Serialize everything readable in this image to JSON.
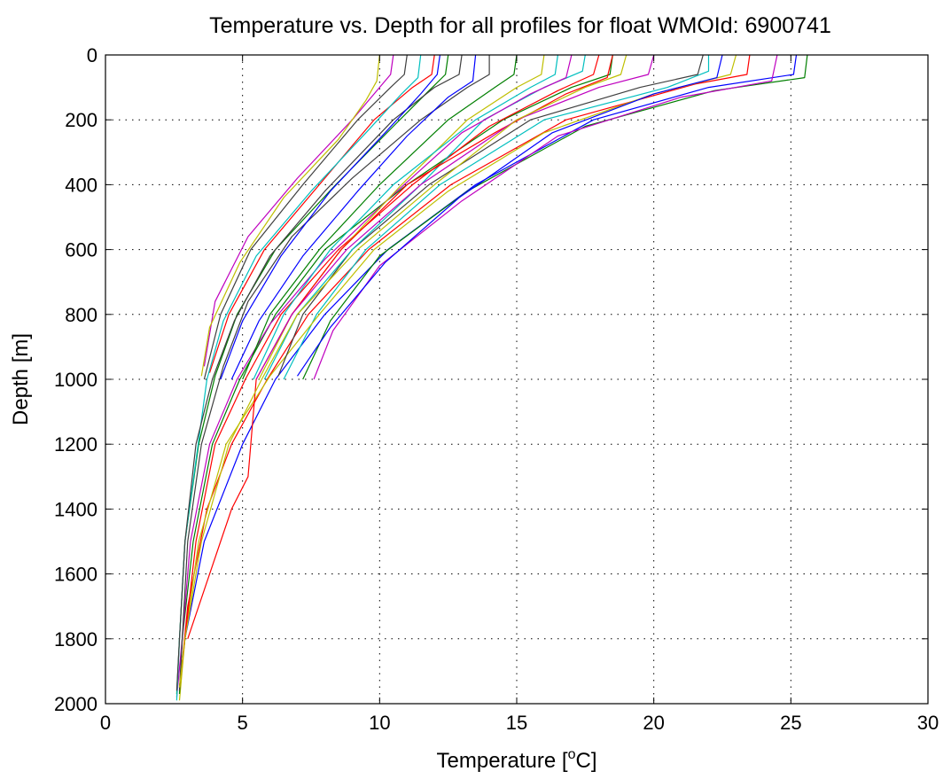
{
  "chart_data": {
    "type": "line",
    "title": "Temperature vs. Depth for all profiles for float WMOId: 6900741",
    "xlabel": "Temperature [",
    "xlabel_super": "o",
    "xlabel_end": "C]",
    "ylabel": "Depth [m]",
    "xlim": [
      0,
      30
    ],
    "ylim": [
      0,
      2000
    ],
    "y_reversed": true,
    "grid": true,
    "legend": false,
    "xticks": [
      0,
      5,
      10,
      15,
      20,
      25,
      30
    ],
    "yticks": [
      0,
      200,
      400,
      600,
      800,
      1000,
      1200,
      1400,
      1600,
      1800,
      2000
    ],
    "colors": [
      "#0000ff",
      "#007f00",
      "#ff0000",
      "#00bfbf",
      "#bf00bf",
      "#bfbf00",
      "#3f3f3f"
    ],
    "series": [
      {
        "depth": [
          0,
          60,
          100,
          200,
          400,
          600,
          800,
          1000,
          1200,
          1500,
          1800,
          1950
        ],
        "temperature": [
          25.2,
          25.1,
          22.0,
          17.8,
          13.5,
          10.3,
          8.0,
          6.2,
          5.0,
          3.6,
          2.9,
          2.7
        ]
      },
      {
        "depth": [
          0,
          70,
          110,
          220,
          420,
          620,
          820,
          1000
        ],
        "temperature": [
          25.6,
          25.5,
          22.2,
          17.5,
          13.2,
          10.0,
          8.2,
          7.2
        ]
      },
      {
        "depth": [
          0,
          60,
          90,
          200,
          400,
          600,
          800,
          1000,
          1200,
          1400,
          1700,
          1960
        ],
        "temperature": [
          23.5,
          23.4,
          21.5,
          16.8,
          12.6,
          9.6,
          7.4,
          5.9,
          4.6,
          3.7,
          3.0,
          2.7
        ]
      },
      {
        "depth": [
          0,
          50,
          100,
          200,
          400,
          600,
          800,
          1000
        ],
        "temperature": [
          22.0,
          22.0,
          20.5,
          16.0,
          12.2,
          9.5,
          7.7,
          6.5
        ]
      },
      {
        "depth": [
          0,
          80,
          130,
          250,
          450,
          650,
          850,
          1000
        ],
        "temperature": [
          24.5,
          24.3,
          21.0,
          16.5,
          13.0,
          10.0,
          8.3,
          7.6
        ]
      },
      {
        "depth": [
          0,
          60,
          120,
          240,
          420,
          600,
          800,
          990,
          1200,
          1500,
          1800,
          1990
        ],
        "temperature": [
          23.0,
          22.8,
          20.0,
          16.0,
          12.5,
          9.8,
          7.8,
          6.0,
          4.4,
          3.4,
          2.9,
          2.7
        ]
      },
      {
        "depth": [
          0,
          60,
          100,
          200,
          400,
          600,
          800,
          990
        ],
        "temperature": [
          21.8,
          21.6,
          19.5,
          15.5,
          11.8,
          9.0,
          7.2,
          6.3
        ]
      },
      {
        "depth": [
          0,
          70,
          120,
          240,
          440,
          640,
          840,
          990
        ],
        "temperature": [
          22.5,
          22.3,
          20.0,
          16.3,
          12.9,
          10.2,
          8.2,
          7.0
        ]
      },
      {
        "depth": [
          0,
          60,
          100,
          200,
          400,
          600,
          800,
          1000,
          1200,
          1500,
          1800,
          1970
        ],
        "temperature": [
          18.5,
          18.4,
          17.0,
          14.5,
          11.0,
          8.0,
          6.2,
          4.9,
          3.9,
          3.2,
          2.8,
          2.7
        ]
      },
      {
        "depth": [
          0,
          60,
          110,
          220,
          400,
          600,
          800,
          1000,
          1200,
          1500,
          1800,
          1950
        ],
        "temperature": [
          18.0,
          17.8,
          16.5,
          14.0,
          11.2,
          8.5,
          6.4,
          5.1,
          4.0,
          3.3,
          2.9,
          2.7
        ]
      },
      {
        "depth": [
          0,
          50,
          100,
          200,
          400,
          600,
          800,
          1000
        ],
        "temperature": [
          17.5,
          17.4,
          16.0,
          13.8,
          11.5,
          9.0,
          7.0,
          5.8
        ]
      },
      {
        "depth": [
          0,
          70,
          120,
          240,
          430,
          630,
          830,
          1000,
          1200,
          1500,
          1800,
          1980
        ],
        "temperature": [
          17.0,
          16.8,
          15.5,
          13.0,
          10.5,
          8.0,
          6.0,
          4.8,
          3.8,
          3.1,
          2.8,
          2.6
        ]
      },
      {
        "depth": [
          0,
          60,
          100,
          200,
          400,
          600,
          800,
          1000
        ],
        "temperature": [
          16.0,
          15.9,
          15.0,
          13.2,
          10.8,
          8.6,
          6.8,
          5.6
        ]
      },
      {
        "depth": [
          0,
          60,
          100,
          200,
          380,
          560,
          760,
          960,
          1200,
          1500,
          1800,
          1960
        ],
        "temperature": [
          14.0,
          14.0,
          13.2,
          11.5,
          9.0,
          6.8,
          5.2,
          4.3,
          3.5,
          3.0,
          2.8,
          2.7
        ]
      },
      {
        "depth": [
          0,
          80,
          130,
          250,
          420,
          620,
          820,
          1000
        ],
        "temperature": [
          13.5,
          13.4,
          12.5,
          11.0,
          9.2,
          7.2,
          5.6,
          4.6
        ]
      },
      {
        "depth": [
          0,
          60,
          110,
          220,
          400,
          600,
          800,
          990,
          1200,
          1500,
          1800,
          1970
        ],
        "temperature": [
          12.5,
          12.4,
          11.8,
          10.5,
          8.4,
          6.2,
          4.8,
          4.0,
          3.4,
          2.9,
          2.7,
          2.6
        ]
      },
      {
        "depth": [
          0,
          60,
          100,
          200,
          400,
          600,
          800,
          980
        ],
        "temperature": [
          12.0,
          11.9,
          11.2,
          9.8,
          7.8,
          5.8,
          4.5,
          3.8
        ]
      },
      {
        "depth": [
          0,
          70,
          120,
          240,
          420,
          620,
          820,
          1000,
          1250,
          1500,
          1800,
          1990
        ],
        "temperature": [
          11.5,
          11.4,
          10.8,
          9.5,
          7.5,
          5.5,
          4.3,
          3.7,
          3.3,
          2.9,
          2.7,
          2.6
        ]
      },
      {
        "depth": [
          0,
          60,
          100,
          200,
          380,
          560,
          760,
          960
        ],
        "temperature": [
          10.5,
          10.4,
          10.0,
          9.0,
          7.0,
          5.2,
          4.0,
          3.6
        ]
      },
      {
        "depth": [
          0,
          80,
          140,
          260,
          440,
          640,
          840,
          990
        ],
        "temperature": [
          10.0,
          9.9,
          9.5,
          8.5,
          6.5,
          4.9,
          3.8,
          3.5
        ]
      },
      {
        "depth": [
          0,
          60,
          100,
          200,
          420,
          620,
          820,
          1000,
          1200,
          1500,
          1800,
          1960
        ],
        "temperature": [
          13.0,
          12.9,
          12.0,
          10.5,
          8.0,
          6.0,
          4.7,
          3.9,
          3.3,
          2.9,
          2.7,
          2.6
        ]
      },
      {
        "depth": [
          0,
          60,
          120,
          240,
          420,
          620,
          820,
          1000
        ],
        "temperature": [
          12.2,
          12.1,
          11.5,
          10.2,
          8.2,
          6.4,
          5.0,
          4.2
        ]
      },
      {
        "depth": [
          0,
          60,
          100,
          200,
          400,
          600,
          800,
          1000
        ],
        "temperature": [
          15.0,
          14.9,
          14.2,
          12.5,
          10.0,
          7.8,
          6.0,
          5.0
        ]
      },
      {
        "depth": [
          0,
          70,
          120,
          240,
          400,
          600,
          800,
          1000,
          1300,
          1400,
          1500,
          1800
        ],
        "temperature": [
          18.5,
          18.3,
          16.8,
          14.2,
          11.0,
          8.6,
          6.8,
          5.5,
          5.2,
          4.6,
          4.2,
          3.0
        ]
      },
      {
        "depth": [
          0,
          60,
          100,
          200,
          400,
          600,
          800,
          1000
        ],
        "temperature": [
          16.5,
          16.4,
          15.5,
          13.5,
          10.5,
          8.2,
          6.5,
          5.4
        ]
      },
      {
        "depth": [
          0,
          60,
          100,
          200,
          400,
          600,
          800,
          1000
        ],
        "temperature": [
          20.0,
          19.8,
          18.0,
          15.0,
          11.5,
          8.8,
          6.8,
          5.5
        ]
      },
      {
        "depth": [
          0,
          60,
          100,
          200,
          400,
          600,
          800,
          1000,
          1200,
          1500,
          1800,
          1950
        ],
        "temperature": [
          19.0,
          18.8,
          17.5,
          15.0,
          12.0,
          9.2,
          7.0,
          5.7,
          4.5,
          3.5,
          2.9,
          2.7
        ]
      },
      {
        "depth": [
          0,
          60,
          100,
          200,
          400,
          600,
          800,
          1000
        ],
        "temperature": [
          11.0,
          10.9,
          10.4,
          9.2,
          7.2,
          5.3,
          4.2,
          3.6
        ]
      }
    ]
  }
}
